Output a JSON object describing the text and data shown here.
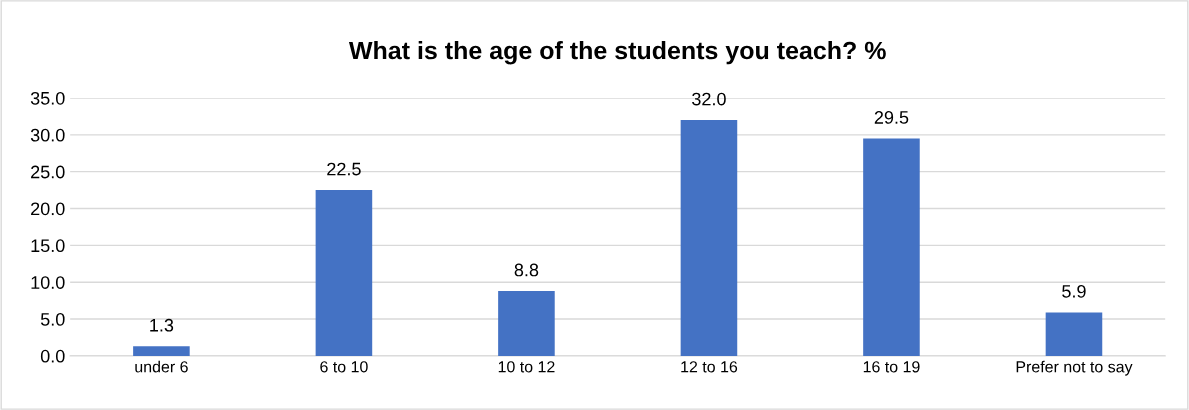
{
  "chart_data": {
    "type": "bar",
    "title": "What is the age of the students you teach? %",
    "categories": [
      "under 6",
      "6 to 10",
      "10 to 12",
      "12 to 16",
      "16 to 19",
      "Prefer not to say"
    ],
    "values": [
      1.3,
      22.5,
      8.8,
      32.0,
      29.5,
      5.9
    ],
    "value_labels": [
      "1.3",
      "22.5",
      "8.8",
      "32.0",
      "29.5",
      "5.9"
    ],
    "color": "#4472c4",
    "ylim": [
      0,
      35
    ],
    "yticks": [
      {
        "value": 0,
        "label": "0.0"
      },
      {
        "value": 5,
        "label": "5.0"
      },
      {
        "value": 10,
        "label": "10.0"
      },
      {
        "value": 15,
        "label": "15.0"
      },
      {
        "value": 20,
        "label": "20.0"
      },
      {
        "value": 25,
        "label": "25.0"
      },
      {
        "value": 30,
        "label": "30.0"
      },
      {
        "value": 35,
        "label": "35.0"
      }
    ],
    "grid": "y"
  }
}
